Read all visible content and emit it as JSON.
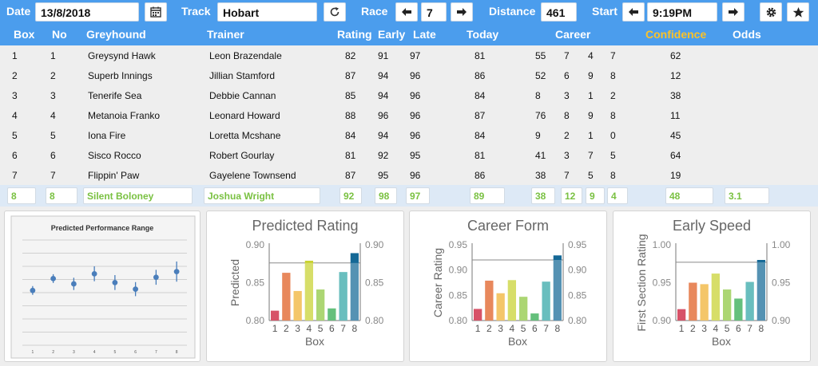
{
  "toolbar": {
    "date_label": "Date",
    "date_value": "13/8/2018",
    "track_label": "Track",
    "track_value": "Hobart",
    "race_label": "Race",
    "race_value": "7",
    "distance_label": "Distance",
    "distance_value": "461",
    "start_label": "Start",
    "start_value": "9:19PM",
    "icons": [
      "calendar-icon",
      "refresh-icon",
      "arrow-left-icon",
      "arrow-right-icon",
      "gear-icon",
      "star-icon"
    ]
  },
  "columns": [
    "Box",
    "No",
    "Greyhound",
    "Trainer",
    "Rating",
    "Early",
    "Late",
    "Today",
    "Career",
    "Confidence",
    "Odds"
  ],
  "rows": [
    {
      "box": "1",
      "no": "1",
      "dog": "Greysynd Hawk",
      "trainer": "Leon Brazendale",
      "rating": "82",
      "early": "91",
      "late": "97",
      "today": "81",
      "c1": "55",
      "c2": "7",
      "c3": "4",
      "c4": "7",
      "confidence": "62",
      "odds": ""
    },
    {
      "box": "2",
      "no": "2",
      "dog": "Superb Innings",
      "trainer": "Jillian Stamford",
      "rating": "87",
      "early": "94",
      "late": "96",
      "today": "86",
      "c1": "52",
      "c2": "6",
      "c3": "9",
      "c4": "8",
      "confidence": "12",
      "odds": ""
    },
    {
      "box": "3",
      "no": "3",
      "dog": "Tenerife Sea",
      "trainer": "Debbie Cannan",
      "rating": "85",
      "early": "94",
      "late": "96",
      "today": "84",
      "c1": "8",
      "c2": "3",
      "c3": "1",
      "c4": "2",
      "confidence": "38",
      "odds": ""
    },
    {
      "box": "4",
      "no": "4",
      "dog": "Metanoia Franko",
      "trainer": "Leonard Howard",
      "rating": "88",
      "early": "96",
      "late": "96",
      "today": "87",
      "c1": "76",
      "c2": "8",
      "c3": "9",
      "c4": "8",
      "confidence": "11",
      "odds": ""
    },
    {
      "box": "5",
      "no": "5",
      "dog": "Iona Fire",
      "trainer": "Loretta Mcshane",
      "rating": "84",
      "early": "94",
      "late": "96",
      "today": "84",
      "c1": "9",
      "c2": "2",
      "c3": "1",
      "c4": "0",
      "confidence": "45",
      "odds": ""
    },
    {
      "box": "6",
      "no": "6",
      "dog": "Sisco Rocco",
      "trainer": "Robert Gourlay",
      "rating": "81",
      "early": "92",
      "late": "95",
      "today": "81",
      "c1": "41",
      "c2": "3",
      "c3": "7",
      "c4": "5",
      "confidence": "64",
      "odds": ""
    },
    {
      "box": "7",
      "no": "7",
      "dog": "Flippin' Paw",
      "trainer": "Gayelene Townsend",
      "rating": "87",
      "early": "95",
      "late": "96",
      "today": "86",
      "c1": "38",
      "c2": "7",
      "c3": "5",
      "c4": "8",
      "confidence": "19",
      "odds": ""
    }
  ],
  "highlight": {
    "box": "8",
    "no": "8",
    "dog": "Silent Boloney",
    "trainer": "Joshua Wright",
    "rating": "92",
    "early": "98",
    "late": "97",
    "today": "89",
    "c1": "38",
    "c2": "12",
    "c3": "9",
    "c4": "4",
    "confidence": "48",
    "odds": "3.1"
  },
  "colors": {
    "header_bg": "#4b9ded",
    "confidence_header": "#fcc227",
    "highlight_text": "#7ac142",
    "highlight_row": "#dde9f6",
    "table_bg": "#eeeeee"
  },
  "chart_data": [
    {
      "type": "scatter",
      "title": "Predicted Performance Range",
      "x": [
        "1",
        "2",
        "3",
        "4",
        "5",
        "6",
        "7",
        "8"
      ],
      "values": [
        0.835,
        0.862,
        0.85,
        0.873,
        0.853,
        0.838,
        0.865,
        0.878
      ],
      "error": [
        0.01,
        0.01,
        0.014,
        0.017,
        0.017,
        0.016,
        0.017,
        0.023
      ],
      "ylim": [
        0.71,
        0.95
      ],
      "grid": true
    },
    {
      "type": "bar",
      "title": "Predicted Rating",
      "categories": [
        "1",
        "2",
        "3",
        "4",
        "5",
        "6",
        "7",
        "8"
      ],
      "values": [
        0.813,
        0.863,
        0.839,
        0.879,
        0.841,
        0.816,
        0.864,
        0.889
      ],
      "xlabel": "Box",
      "ylabel": "Predicted",
      "ylim": [
        0.8,
        0.9
      ],
      "ticks": [
        "0.80",
        "0.85",
        "0.90"
      ],
      "colors": [
        "#c8102e",
        "#e05a1e",
        "#f0b030",
        "#c8d230",
        "#8cc63e",
        "#2aa84a",
        "#30a6a6",
        "#146896"
      ],
      "refline": 0.876
    },
    {
      "type": "bar",
      "title": "Career Form",
      "categories": [
        "1",
        "2",
        "3",
        "4",
        "5",
        "6",
        "7",
        "8"
      ],
      "values": [
        0.823,
        0.879,
        0.854,
        0.88,
        0.847,
        0.814,
        0.877,
        0.929
      ],
      "xlabel": "Box",
      "ylabel": "Career Rating",
      "ylim": [
        0.8,
        0.95
      ],
      "ticks": [
        "0.80",
        "0.85",
        "0.90",
        "0.95"
      ],
      "colors": [
        "#c8102e",
        "#e05a1e",
        "#f0b030",
        "#c8d230",
        "#8cc63e",
        "#2aa84a",
        "#30a6a6",
        "#146896"
      ],
      "refline": 0.92
    },
    {
      "type": "bar",
      "title": "Early Speed",
      "categories": [
        "1",
        "2",
        "3",
        "4",
        "5",
        "6",
        "7",
        "8"
      ],
      "values": [
        0.915,
        0.95,
        0.948,
        0.962,
        0.941,
        0.929,
        0.951,
        0.98
      ],
      "xlabel": "Box",
      "ylabel": "First Section Rating",
      "ylim": [
        0.9,
        1.0
      ],
      "ticks": [
        "0.90",
        "0.95",
        "1.00"
      ],
      "colors": [
        "#c8102e",
        "#e05a1e",
        "#f0b030",
        "#c8d230",
        "#8cc63e",
        "#2aa84a",
        "#30a6a6",
        "#146896"
      ],
      "refline": 0.977
    }
  ]
}
